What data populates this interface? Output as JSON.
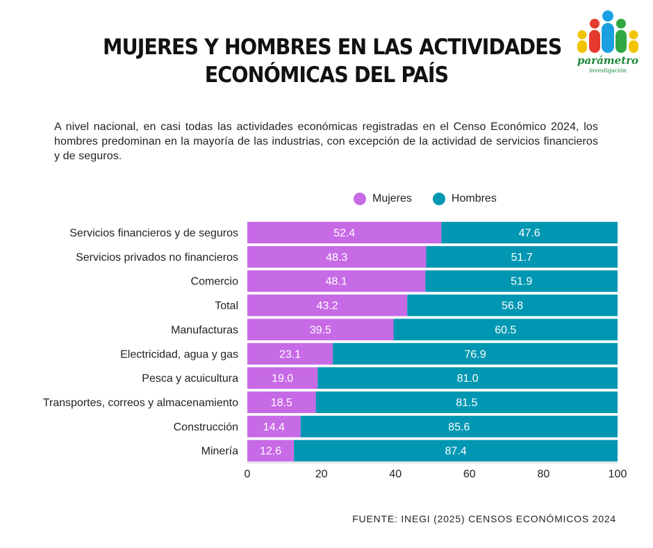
{
  "title_lines": [
    "MUJERES Y HOMBRES EN LAS ACTIVIDADES",
    "ECONÓMICAS DEL PAÍS"
  ],
  "intro_text": "A nivel nacional, en casi todas las actividades económicas registradas en el Censo Económico 2024, los hombres predominan en la mayoría de las industrias, con excepción de la actividad de servicios financieros y de seguros.",
  "logo": {
    "name": "parámetro",
    "tagline": "investigación",
    "icon": "people-logo-icon"
  },
  "source": "FUENTE: INEGI (2025) CENSOS ECONÓMICOS 2024",
  "colors": {
    "mujeres": "#c76ae6",
    "hombres": "#0197b2"
  },
  "chart_data": {
    "type": "bar",
    "orientation": "horizontal",
    "stacked": true,
    "categories": [
      "Servicios financieros y de seguros",
      "Servicios privados no financieros",
      "Comercio",
      "Total",
      "Manufacturas",
      "Electricidad, agua y gas",
      "Pesca y acuicultura",
      "Transportes, correos y almacenamiento",
      "Construcción",
      "Minería"
    ],
    "series": [
      {
        "name": "Mujeres",
        "color": "#c76ae6",
        "values": [
          52.4,
          48.3,
          48.1,
          43.2,
          39.5,
          23.1,
          19.0,
          18.5,
          14.4,
          12.6
        ]
      },
      {
        "name": "Hombres",
        "color": "#0197b2",
        "values": [
          47.6,
          51.7,
          51.9,
          56.8,
          60.5,
          76.9,
          81.0,
          81.5,
          85.6,
          87.4
        ]
      }
    ],
    "data_labels": [
      [
        "52.4",
        "48.3",
        "48.1",
        "43.2",
        "39.5",
        "23.1",
        "19.0",
        "18.5",
        "14.4",
        "12.6"
      ],
      [
        "47.6",
        "51.7",
        "51.9",
        "56.8",
        "60.5",
        "76.9",
        "81.0",
        "81.5",
        "85.6",
        "87.4"
      ]
    ],
    "xlim": [
      0,
      100
    ],
    "xticks": [
      "0",
      "20",
      "40",
      "60",
      "80",
      "100"
    ],
    "grid": false,
    "legend_position": "top"
  }
}
